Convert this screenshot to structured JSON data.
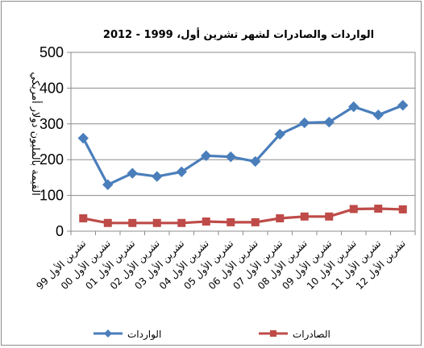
{
  "chart_data": {
    "type": "line",
    "title": "الواردات والصادرات لشهر تشرين أول، 1999 - 2012",
    "xlabel": "",
    "ylabel": "القيمة بالمليون دولار أمريكي",
    "categories": [
      "تشرين الأول 99",
      "تشرين الأول 00",
      "تشرين الأول 01",
      "تشرين الأول 02",
      "تشرين الأول 03",
      "تشرين الأول 04",
      "تشرين الأول 05",
      "تشرين الأول 06",
      "تشرين الأول 07",
      "تشرين الأول 08",
      "تشرين الأول 09",
      "تشرين الأول 10",
      "تشرين الأول 11",
      "تشرين الأول 12"
    ],
    "series": [
      {
        "name": "الواردات",
        "color": "#4a7ebb",
        "marker": "diamond",
        "values": [
          260,
          130,
          162,
          153,
          166,
          211,
          208,
          195,
          271,
          303,
          305,
          348,
          325,
          352
        ]
      },
      {
        "name": "الصادرات",
        "color": "#be4b48",
        "marker": "square",
        "values": [
          36,
          23,
          23,
          23,
          23,
          27,
          25,
          25,
          36,
          41,
          41,
          62,
          63,
          61
        ]
      }
    ],
    "ylim": [
      0,
      500
    ],
    "yticks": [
      0,
      100,
      200,
      300,
      400,
      500
    ],
    "grid": "horizontal",
    "legend_position": "bottom"
  }
}
